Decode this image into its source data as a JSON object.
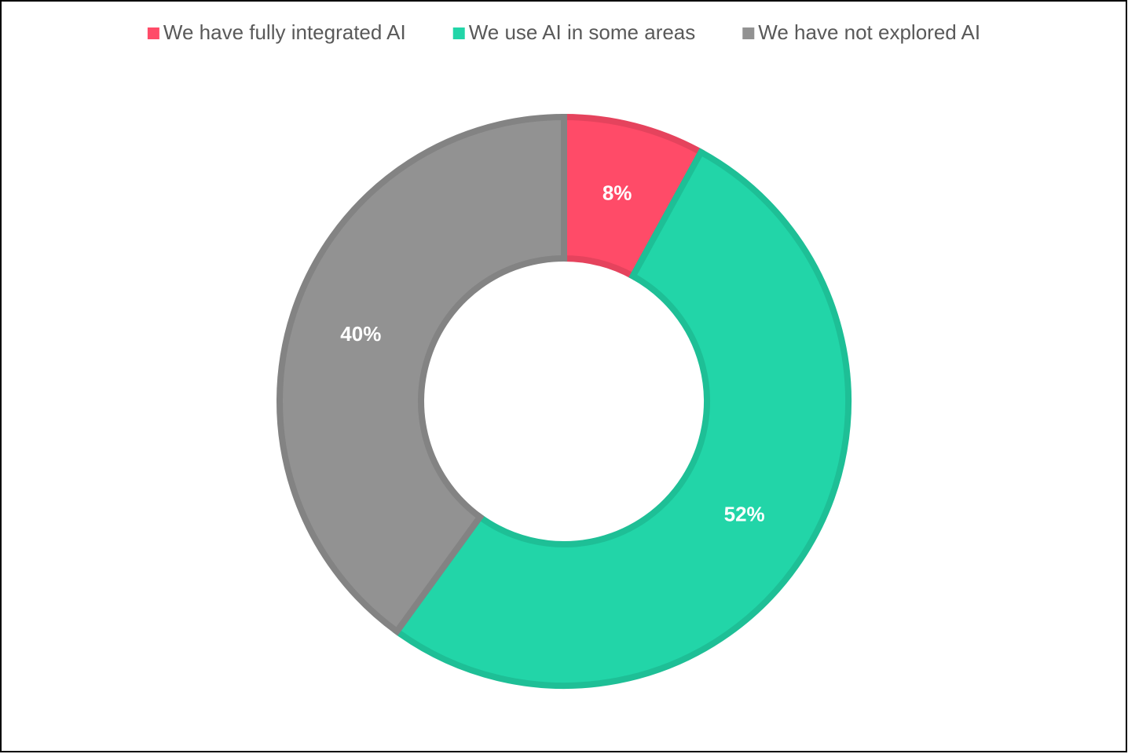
{
  "chart_data": {
    "type": "doughnut",
    "categories": [
      "We have fully integrated AI",
      "We use AI in some areas",
      "We have not explored AI"
    ],
    "values": [
      8,
      52,
      40
    ],
    "value_labels": [
      "8%",
      "52%",
      "40%"
    ],
    "colors": [
      "#ff4b68",
      "#22d5a8",
      "#929292"
    ],
    "legend": "top"
  }
}
